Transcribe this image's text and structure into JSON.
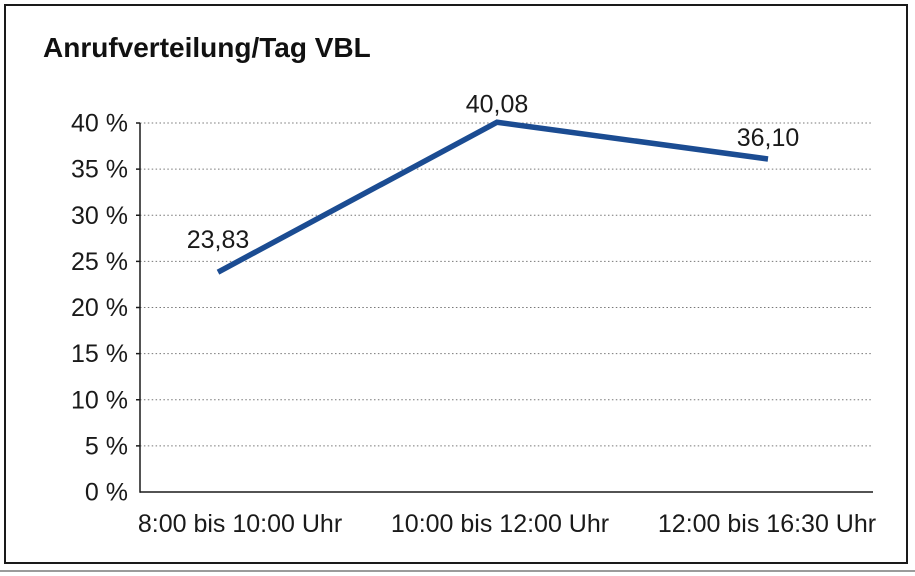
{
  "window": {
    "background": "#ffffff",
    "frame_border_color": "#1a1a1a",
    "bottom_rule_color": "#9b9b9b"
  },
  "chart_data": {
    "type": "line",
    "title": "Anrufverteilung/Tag VBL",
    "categories": [
      "8:00 bis 10:00 Uhr",
      "10:00 bis 12:00 Uhr",
      "12:00 bis 16:30 Uhr"
    ],
    "series": [
      {
        "name": "Anrufverteilung/Tag VBL",
        "values": [
          23.83,
          40.08,
          36.1
        ],
        "value_labels": [
          "23,83",
          "40,08",
          "36,10"
        ],
        "color": "#1B4C92"
      }
    ],
    "xlabel": "",
    "ylabel": "",
    "ylim": [
      0,
      40
    ],
    "yticks": [
      0,
      5,
      10,
      15,
      20,
      25,
      30,
      35,
      40
    ],
    "ytick_labels": [
      "0 %",
      "5 %",
      "10 %",
      "15 %",
      "20 %",
      "25 %",
      "30 %",
      "35 %",
      "40 %"
    ],
    "grid": "horizontal-dotted",
    "legend": "none",
    "text_color": "#1a1a1a",
    "gridline_color": "#777777"
  }
}
